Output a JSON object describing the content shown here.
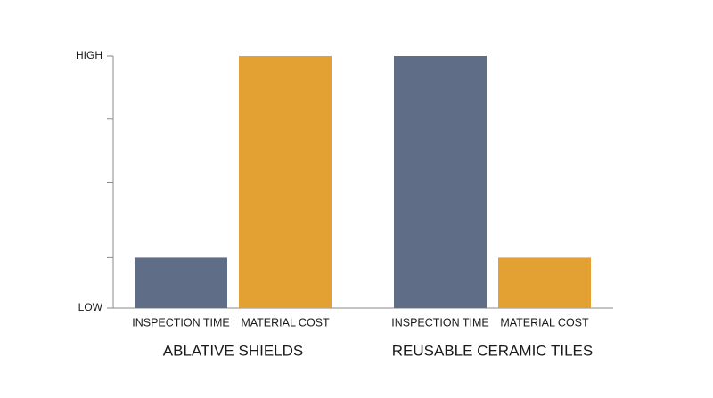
{
  "chart_data": {
    "type": "bar",
    "categories": [
      "ABLATIVE SHIELDS",
      "REUSABLE CERAMIC TILES"
    ],
    "series": [
      {
        "name": "INSPECTION TIME",
        "color": "#5f6e86",
        "values": [
          0.2,
          1
        ]
      },
      {
        "name": "MATERIAL COST",
        "color": "#e3a033",
        "values": [
          1,
          0.2
        ]
      }
    ],
    "ylim": [
      0,
      1
    ],
    "yticks": [
      {
        "value": 0,
        "label": "LOW"
      },
      {
        "value": 1,
        "label": "HIGH"
      }
    ],
    "minor_yticks": [
      0.2,
      0.5,
      0.75
    ]
  }
}
